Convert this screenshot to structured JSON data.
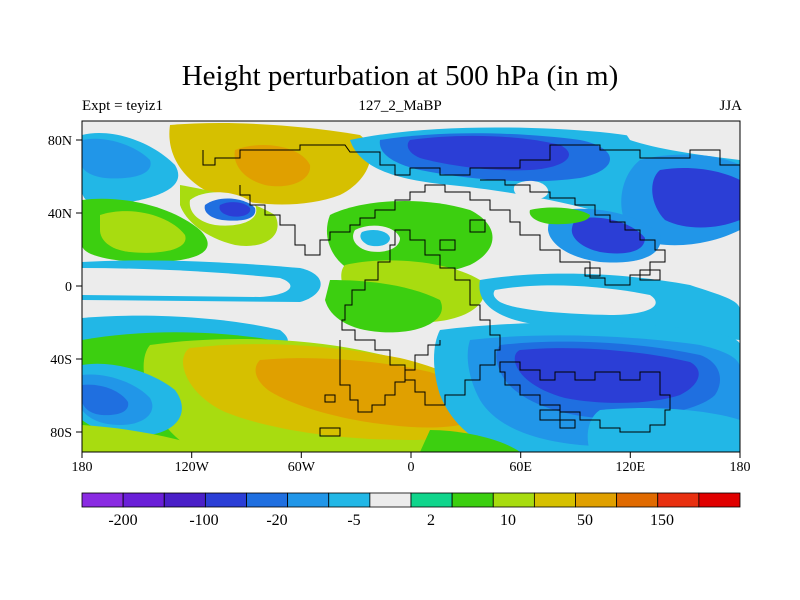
{
  "title": "Height perturbation at 500 hPa (in m)",
  "subtitle_left": "Expt = teyiz1",
  "subtitle_center": "127_2_MaBP",
  "subtitle_right": "JJA",
  "x_ticks": [
    "180",
    "120W",
    "60W",
    "0",
    "60E",
    "120E",
    "180"
  ],
  "y_ticks": [
    "80N",
    "40N",
    "0",
    "40S",
    "80S"
  ],
  "colorbar": {
    "colors": [
      "#8a2be2",
      "#6a1fd8",
      "#4a1fc8",
      "#2b3ed6",
      "#1f6fe0",
      "#2196e8",
      "#22b7e6",
      "#ececec",
      "#10d58c",
      "#3ccf10",
      "#a8dc10",
      "#d6c000",
      "#e0a000",
      "#e06a00",
      "#e83010",
      "#e00000"
    ],
    "labels": [
      "-200",
      "-100",
      "-20",
      "-5",
      "2",
      "10",
      "50",
      "150"
    ]
  },
  "colors": {
    "background_field": "#ececec",
    "strong_negative": "#2b3ed6",
    "negative": "#1f6fe0",
    "weak_negative": "#22b7e6",
    "weak_positive": "#3ccf10",
    "positive": "#a8dc10",
    "strong_positive": "#d6c000",
    "very_strong_positive": "#e0a000"
  }
}
